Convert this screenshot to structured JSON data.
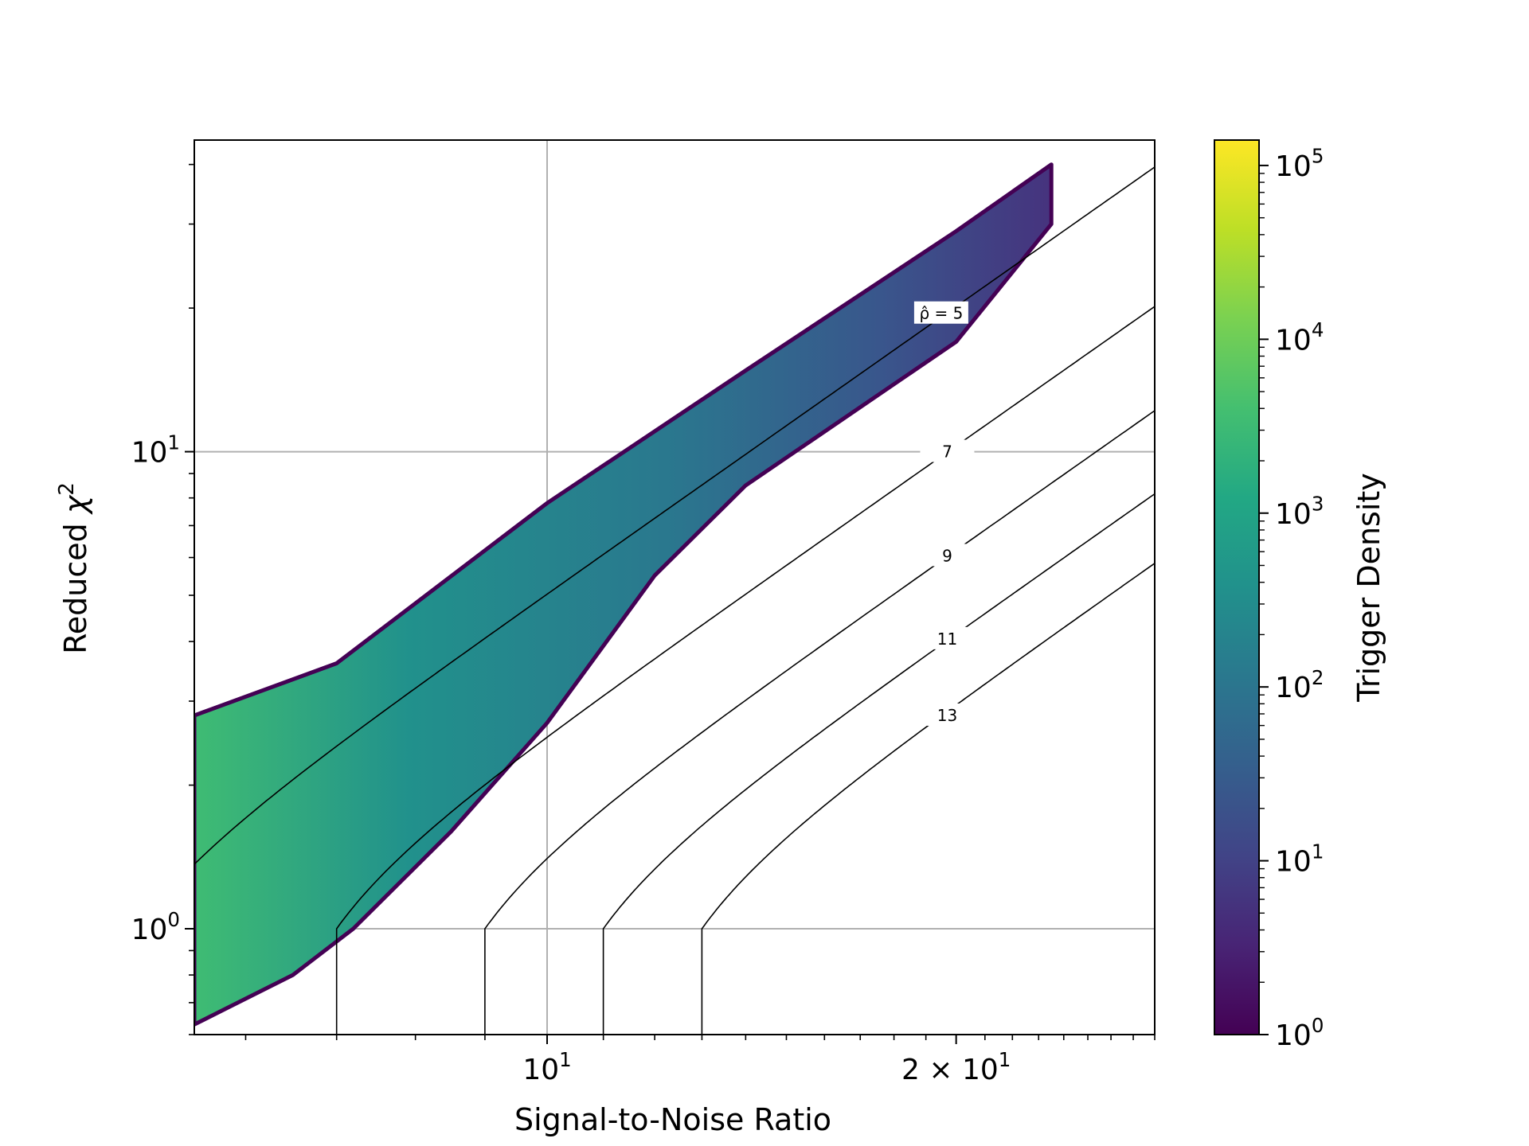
{
  "chart_data": {
    "type": "heatmap",
    "xlabel": "Signal-to-Noise Ratio",
    "ylabel_main": "Reduced ",
    "ylabel_symbol": "χ",
    "ylabel_sup": "2",
    "xscale": "log",
    "yscale": "log",
    "xlim": [
      5.5,
      28
    ],
    "ylim": [
      0.6,
      45
    ],
    "grid": true,
    "x_ticks": [
      {
        "value": 10,
        "base": "10",
        "exp": "1",
        "prefix": ""
      },
      {
        "value": 20,
        "base": "10",
        "exp": "1",
        "prefix": "2 × "
      }
    ],
    "y_ticks": [
      {
        "value": 1,
        "base": "10",
        "exp": "0"
      },
      {
        "value": 10,
        "base": "10",
        "exp": "1"
      }
    ],
    "density_band": {
      "upper_edge": [
        [
          5.5,
          2.8
        ],
        [
          7,
          3.6
        ],
        [
          10,
          7.8
        ],
        [
          14,
          14.8
        ],
        [
          20,
          29
        ],
        [
          23.5,
          40
        ]
      ],
      "lower_edge": [
        [
          23.5,
          30
        ],
        [
          20,
          17
        ],
        [
          14,
          8.5
        ],
        [
          12,
          5.5
        ],
        [
          10,
          2.7
        ],
        [
          8.5,
          1.6
        ],
        [
          7.2,
          1.0
        ],
        [
          6.5,
          0.8
        ],
        [
          5.5,
          0.63
        ]
      ],
      "peak_density_location": [
        5.5,
        1.05
      ]
    },
    "contours": [
      {
        "label": "ρ̂ = 5",
        "level": 5,
        "label_at": [
          19.5,
          19.5
        ]
      },
      {
        "label": "7",
        "level": 7,
        "label_at": [
          19.7,
          10.0
        ]
      },
      {
        "label": "9",
        "level": 9,
        "label_at": [
          19.7,
          6.05
        ]
      },
      {
        "label": "11",
        "level": 11,
        "label_at": [
          19.7,
          4.05
        ]
      },
      {
        "label": "13",
        "level": 13,
        "label_at": [
          19.7,
          2.8
        ]
      }
    ],
    "colorbar": {
      "label": "Trigger Density",
      "scale": "log",
      "range": [
        1,
        140000
      ],
      "colormap": "viridis",
      "ticks": [
        {
          "value": 1,
          "base": "10",
          "exp": "0"
        },
        {
          "value": 10,
          "base": "10",
          "exp": "1"
        },
        {
          "value": 100,
          "base": "10",
          "exp": "2"
        },
        {
          "value": 1000,
          "base": "10",
          "exp": "3"
        },
        {
          "value": 10000,
          "base": "10",
          "exp": "4"
        },
        {
          "value": 100000,
          "base": "10",
          "exp": "5"
        }
      ]
    }
  }
}
